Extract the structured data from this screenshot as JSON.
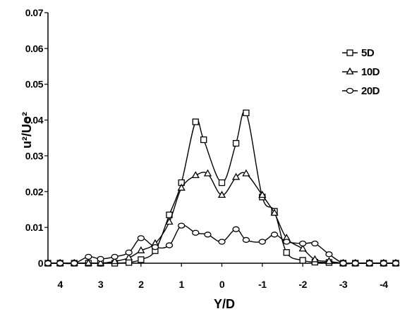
{
  "chart_data": {
    "type": "line",
    "xlabel": "Y/D",
    "ylabel": "u²/Uo²",
    "xlim": [
      4.3,
      -4.3
    ],
    "ylim": [
      0,
      0.07
    ],
    "x_reversed": true,
    "x_ticks": [
      4,
      3,
      2,
      1,
      0,
      -1,
      -2,
      -3,
      -4
    ],
    "x_tick_labels": [
      "4",
      "3",
      "2",
      "1",
      "0",
      "-1",
      "-2",
      "-3",
      "-4"
    ],
    "y_ticks": [
      0,
      0.01,
      0.02,
      0.03,
      0.04,
      0.05,
      0.06,
      0.07
    ],
    "y_tick_labels": [
      "0",
      "0.01",
      "0.02",
      "0.03",
      "0.04",
      "0.05",
      "0.06",
      "0.07"
    ],
    "grid": false,
    "legend_position": "top-right",
    "series": [
      {
        "name": "5D",
        "marker": "square",
        "x": [
          4.3,
          4.0,
          3.65,
          3.3,
          3.0,
          2.65,
          2.3,
          2.0,
          1.65,
          1.3,
          1.0,
          0.65,
          0.45,
          0.0,
          -0.35,
          -0.6,
          -1.0,
          -1.3,
          -1.6,
          -2.0,
          -2.3,
          -2.65,
          -3.0,
          -3.3,
          -3.65,
          -4.0,
          -4.3
        ],
        "y": [
          0,
          0,
          0,
          0,
          0,
          0,
          0.0002,
          0.001,
          0.0035,
          0.0135,
          0.0225,
          0.0395,
          0.0345,
          0.0225,
          0.0335,
          0.042,
          0.0185,
          0.0145,
          0.003,
          0.0008,
          0.0003,
          0.0002,
          0,
          0,
          0,
          0,
          0
        ]
      },
      {
        "name": "10D",
        "marker": "triangle",
        "x": [
          4.3,
          4.0,
          3.65,
          3.3,
          3.0,
          2.65,
          2.3,
          2.0,
          1.65,
          1.3,
          1.0,
          0.65,
          0.35,
          0.0,
          -0.35,
          -0.6,
          -1.0,
          -1.3,
          -1.6,
          -2.0,
          -2.3,
          -2.65,
          -3.0,
          -3.3,
          -3.65,
          -4.0,
          -4.3
        ],
        "y": [
          0,
          0,
          0,
          0,
          0,
          0.0005,
          0.0015,
          0.0035,
          0.0055,
          0.0115,
          0.021,
          0.0245,
          0.025,
          0.019,
          0.024,
          0.025,
          0.019,
          0.014,
          0.007,
          0.004,
          0.001,
          0.0005,
          0,
          0,
          0,
          0,
          0
        ]
      },
      {
        "name": "20D",
        "marker": "circle",
        "x": [
          4.3,
          4.0,
          3.65,
          3.3,
          3.0,
          2.65,
          2.3,
          2.0,
          1.65,
          1.3,
          1.0,
          0.65,
          0.35,
          0.0,
          -0.35,
          -0.6,
          -1.0,
          -1.3,
          -1.6,
          -2.0,
          -2.3,
          -2.65,
          -3.0,
          -3.3,
          -3.65,
          -4.0,
          -4.3
        ],
        "y": [
          0,
          0,
          0,
          0.0018,
          0.0012,
          0.0018,
          0.003,
          0.007,
          0.0045,
          0.005,
          0.0105,
          0.0085,
          0.008,
          0.006,
          0.0095,
          0.0065,
          0.006,
          0.008,
          0.006,
          0.0055,
          0.0055,
          0.0025,
          0,
          0,
          0,
          0,
          0
        ]
      }
    ]
  }
}
